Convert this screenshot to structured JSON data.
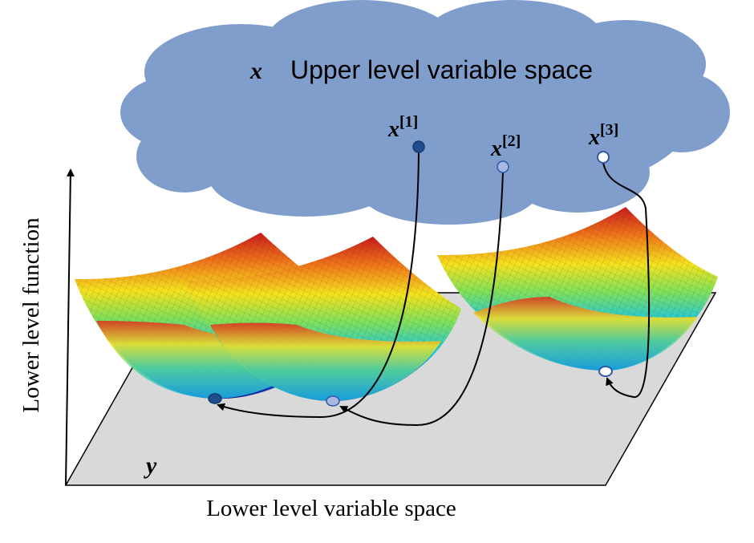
{
  "upper_level": {
    "symbol": "x",
    "label": "Upper level variable space"
  },
  "points": [
    {
      "symbol": "x",
      "index": "[1]"
    },
    {
      "symbol": "x",
      "index": "[2]"
    },
    {
      "symbol": "x",
      "index": "[3]"
    }
  ],
  "axes": {
    "vertical_label": "Lower level function",
    "horizontal_label": "Lower level variable space"
  },
  "plane_label": "y"
}
